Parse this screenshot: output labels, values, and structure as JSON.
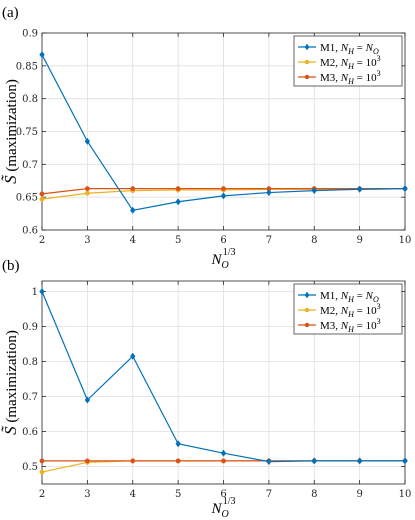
{
  "chart_data": [
    {
      "panel_label": "(a)",
      "type": "line",
      "xlabel": "N_O^{1/3}",
      "ylabel": "S̃ (maximization)",
      "xlim": [
        2,
        10
      ],
      "ylim": [
        0.6,
        0.9
      ],
      "xticks": [
        2,
        3,
        4,
        5,
        6,
        7,
        8,
        9,
        10
      ],
      "yticks": [
        0.6,
        0.65,
        0.7,
        0.75,
        0.8,
        0.85,
        0.9
      ],
      "grid": true,
      "legend_position": "top-right",
      "x": [
        2,
        3,
        4,
        5,
        6,
        7,
        8,
        9,
        10
      ],
      "series": [
        {
          "name": "M1, N_H = N_O",
          "color": "#0072BD",
          "marker": "diamond",
          "values": [
            0.867,
            0.735,
            0.63,
            0.643,
            0.652,
            0.657,
            0.66,
            0.662,
            0.663
          ]
        },
        {
          "name": "M2, N_H = 10^3",
          "color": "#EDB120",
          "marker": "dot",
          "values": [
            0.647,
            0.656,
            0.66,
            0.661,
            0.661,
            0.662,
            0.662,
            0.662,
            0.663
          ]
        },
        {
          "name": "M3, N_H = 10^3",
          "color": "#D95319",
          "marker": "dot",
          "values": [
            0.655,
            0.663,
            0.663,
            0.663,
            0.663,
            0.663,
            0.663,
            0.663,
            0.663
          ]
        }
      ]
    },
    {
      "panel_label": "(b)",
      "type": "line",
      "xlabel": "N_O^{1/3}",
      "ylabel": "S̃ (maximization)",
      "xlim": [
        2,
        10
      ],
      "ylim": [
        0.45,
        1.03
      ],
      "xticks": [
        2,
        3,
        4,
        5,
        6,
        7,
        8,
        9,
        10
      ],
      "yticks": [
        0.5,
        0.6,
        0.7,
        0.8,
        0.9,
        1
      ],
      "grid": true,
      "legend_position": "top-right",
      "x": [
        2,
        3,
        4,
        5,
        6,
        7,
        8,
        9,
        10
      ],
      "series": [
        {
          "name": "M1, N_H = N_O",
          "color": "#0072BD",
          "marker": "diamond",
          "values": [
            1.0,
            0.69,
            0.815,
            0.565,
            0.538,
            0.514,
            0.516,
            0.516,
            0.516
          ]
        },
        {
          "name": "M2, N_H = 10^3",
          "color": "#EDB120",
          "marker": "dot",
          "values": [
            0.484,
            0.512,
            0.516,
            0.516,
            0.516,
            0.516,
            0.516,
            0.516,
            0.516
          ]
        },
        {
          "name": "M3, N_H = 10^3",
          "color": "#D95319",
          "marker": "dot",
          "values": [
            0.516,
            0.516,
            0.516,
            0.516,
            0.516,
            0.516,
            0.516,
            0.516,
            0.516
          ]
        }
      ]
    }
  ]
}
